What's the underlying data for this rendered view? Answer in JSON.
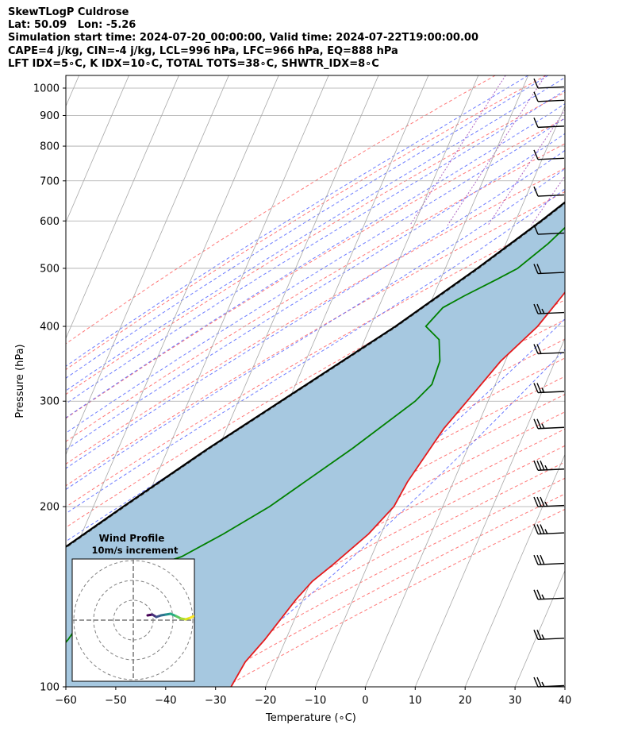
{
  "header": {
    "station_line": "SkewTLogP Culdrose",
    "latlon_line": "Lat: 50.09   Lon: -5.26",
    "time_line": "Simulation start time: 2024-07-20_00:00:00, Valid time: 2024-07-22T19:00:00.00",
    "params_line": "CAPE=4 j/kg, CIN=-4 j/kg, LCL=996 hPa, LFC=966 hPa, EQ=888 hPa",
    "index_line": "LFT IDX=5∘C, K IDX=10∘C, TOTAL TOTS=38∘C, SHWTR_IDX=8∘C"
  },
  "chart_data": {
    "type": "line",
    "subtype": "skew-T log-P",
    "xlabel": "Temperature (∘C)",
    "ylabel": "Pressure (hPa)",
    "xlim": [
      -60,
      40
    ],
    "ylim": [
      1050,
      100
    ],
    "y_log_scale": true,
    "x_ticks": [
      -60,
      -50,
      -40,
      -30,
      -20,
      -10,
      0,
      10,
      20,
      30,
      40
    ],
    "y_ticks": [
      100,
      200,
      300,
      400,
      500,
      600,
      700,
      800,
      900,
      1000
    ],
    "grid": true,
    "temperature": {
      "color": "#e41a1c",
      "p": [
        1000,
        950,
        900,
        870,
        850,
        800,
        700,
        600,
        550,
        500,
        450,
        400,
        350,
        300,
        270,
        250,
        220,
        200,
        180,
        160,
        150,
        140,
        120,
        110,
        100
      ],
      "t": [
        16.0,
        16.6,
        16.5,
        16.3,
        16.8,
        17.0,
        14.9,
        12.3,
        10.8,
        7.8,
        5.8,
        3.5,
        -0.9,
        -4.2,
        -6.5,
        -7.5,
        -9.2,
        -9.8,
        -12.5,
        -17.0,
        -19.7,
        -21.4,
        -24.2,
        -26.2,
        -26.9
      ]
    },
    "dewpoint": {
      "color": "#008000",
      "p": [
        1000,
        950,
        900,
        870,
        850,
        820,
        800,
        750,
        700,
        650,
        600,
        550,
        500,
        480,
        450,
        430,
        400,
        380,
        350,
        320,
        300,
        250,
        200,
        180,
        165,
        150,
        120,
        100
      ],
      "t": [
        16.0,
        15.7,
        15.2,
        14.9,
        14.5,
        11.0,
        6.7,
        5.1,
        4.0,
        2.7,
        1.3,
        -1.5,
        -5.5,
        -8.6,
        -13.8,
        -17.1,
        -18.9,
        -15.1,
        -13.1,
        -12.7,
        -14.6,
        -23.1,
        -34.7,
        -41.6,
        -48.0,
        -60.6,
        -63.6,
        -67.6
      ]
    },
    "parcel": {
      "color": "#000000",
      "p": [
        1000,
        950,
        900,
        850,
        800,
        700,
        600,
        500,
        400,
        300,
        250,
        200,
        150,
        100
      ],
      "t": [
        16.0,
        13.9,
        11.8,
        9.5,
        7.2,
        1.9,
        -4.9,
        -13.6,
        -25.0,
        -41.5,
        -52.0,
        -64.0,
        -79.0,
        -96.0
      ]
    },
    "shaded_region": "between parcel and temperature profiles (#a6c8e0)",
    "background_lines": {
      "isotherms": "gray",
      "dry_adiabats": "red dashed",
      "moist_adiabats": "blue dashed",
      "mixing_ratio": "purple dashed"
    },
    "wind_barbs": {
      "p": [
        100,
        120,
        140,
        160,
        180,
        200,
        230,
        270,
        310,
        360,
        420,
        490,
        570,
        660,
        760,
        860,
        950,
        1000
      ],
      "speed_kt": [
        25,
        25,
        25,
        30,
        35,
        35,
        35,
        25,
        25,
        20,
        25,
        20,
        10,
        10,
        10,
        10,
        10,
        10
      ],
      "direction": "westerly"
    },
    "inset": {
      "title": "Wind Profile",
      "subtitle": "10m/s increment",
      "rings": 3,
      "hodograph": "wind profile colored from dark purple to yellow"
    }
  }
}
